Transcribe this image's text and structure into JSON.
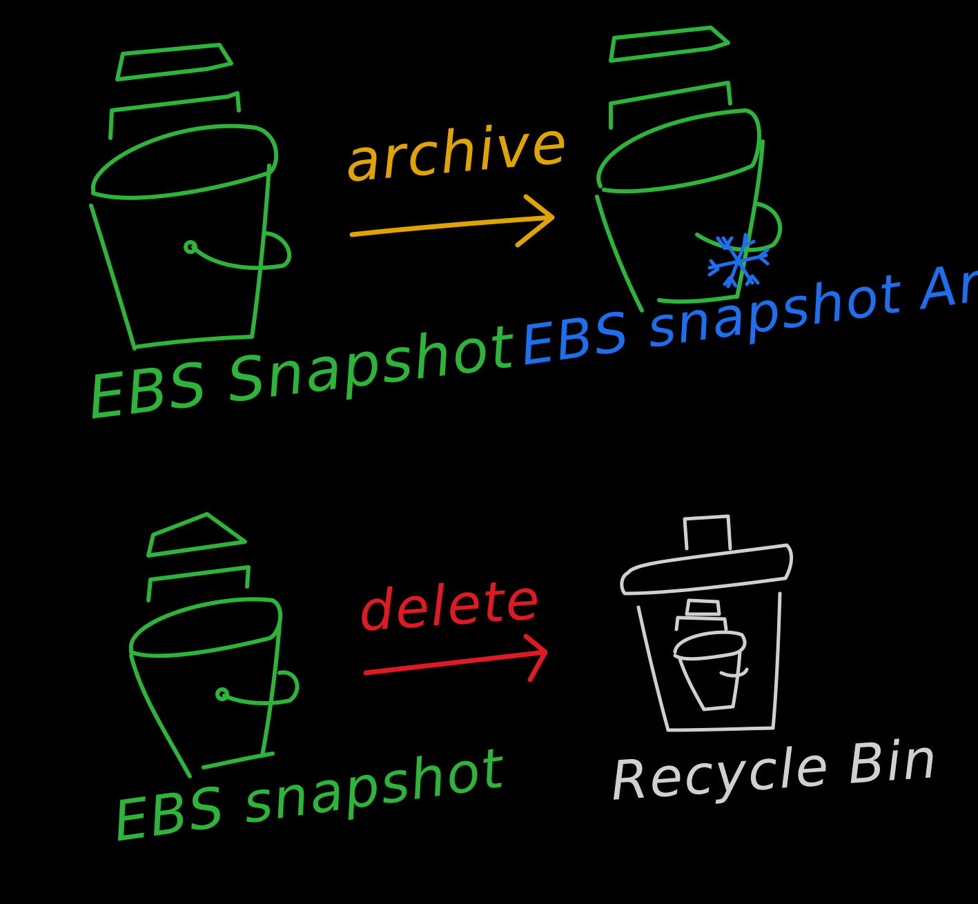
{
  "colors": {
    "snapshot": "#2db53a",
    "archive_label": "#1e6ff0",
    "archive_arrow": "#e0a400",
    "delete_arrow": "#e01a22",
    "recycle": "#d0d0d0",
    "background": "#000000"
  },
  "nodes": {
    "snapshot_top": "EBS Snapshot",
    "snapshot_archive": "EBS snapshot Archive",
    "snapshot_bottom": "EBS snapshot",
    "recycle_bin": "Recycle Bin"
  },
  "edges": {
    "archive": "archive",
    "delete": "delete"
  },
  "icons": {
    "bucket": "bucket-icon",
    "snowflake": "snowflake-icon",
    "trash": "trash-bin-icon"
  }
}
